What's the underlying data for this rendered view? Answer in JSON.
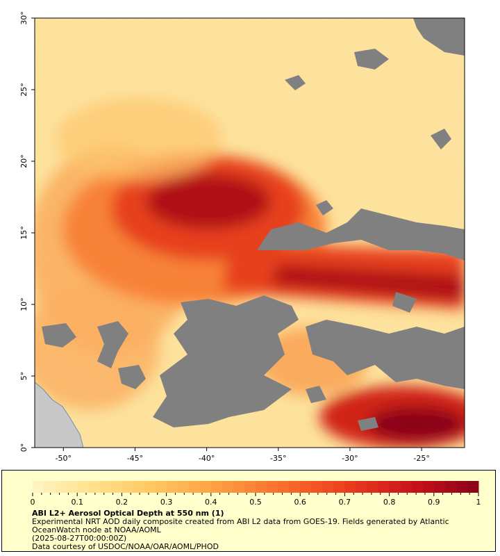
{
  "map": {
    "lat_ticks": [
      "0°",
      "5°",
      "10°",
      "15°",
      "20°",
      "25°",
      "30°"
    ],
    "lon_ticks": [
      "-50°",
      "-45°",
      "-40°",
      "-35°",
      "-30°",
      "-25°"
    ],
    "lat_range": [
      0,
      30
    ],
    "lon_range": [
      -52,
      -22
    ],
    "colors": {
      "missing": "#808080",
      "land": "#c8c8c8",
      "frame": "#000000"
    }
  },
  "colorbar": {
    "ticks": [
      "0",
      "0.1",
      "0.2",
      "0.3",
      "0.4",
      "0.5",
      "0.6",
      "0.7",
      "0.8",
      "0.9",
      "1"
    ],
    "range": [
      0,
      1
    ],
    "colors": [
      "#fff5c4",
      "#ffe08a",
      "#ffc35c",
      "#fd9a40",
      "#f96a2c",
      "#ea3a1f",
      "#c8121a",
      "#8a0018"
    ]
  },
  "info": {
    "title": "ABI L2+ Aerosol Optical Depth at 550 nm (1)",
    "desc_line1": "Experimental NRT AOD daily composite created from ABI L2 data from GOES-19. Fields generated by Atlantic",
    "desc_line2": "OceanWatch node at NOAA/AOML",
    "timestamp": "(2025-08-27T00:00:00Z)",
    "credit": "Data courtesy of USDOC/NOAA/OAR/AOML/PHOD"
  }
}
